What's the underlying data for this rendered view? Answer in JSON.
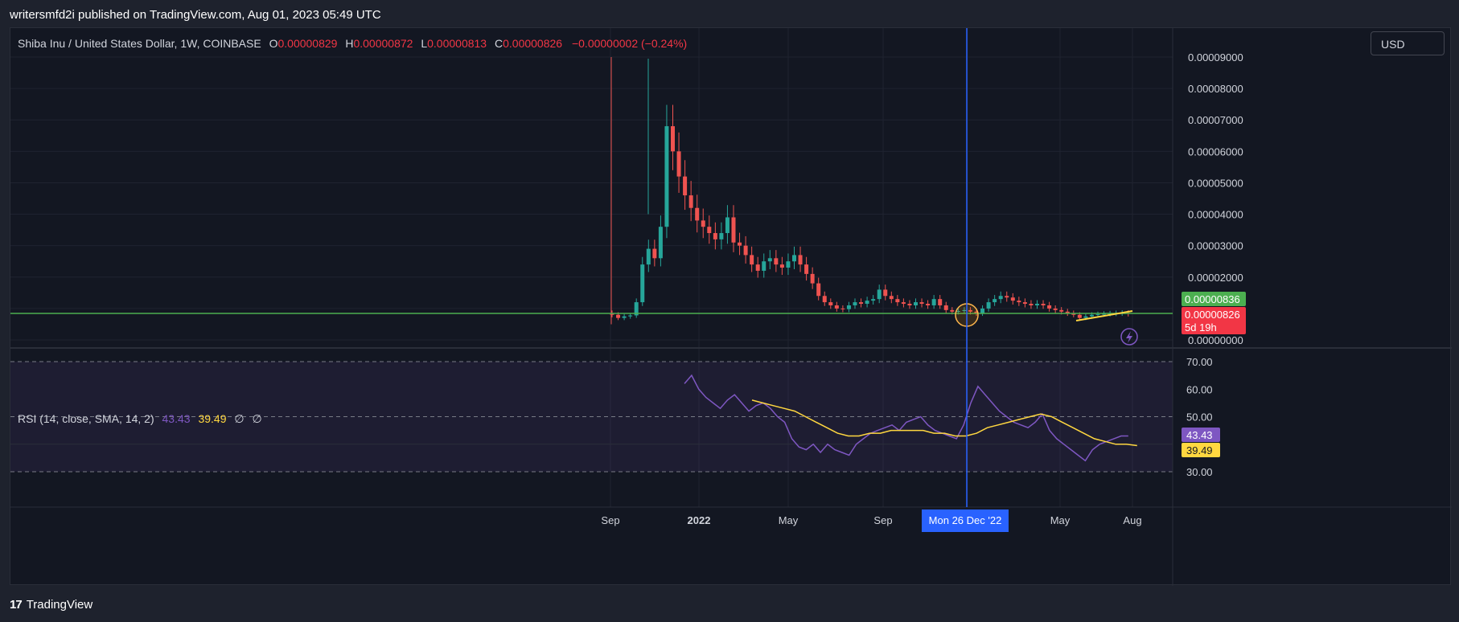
{
  "header": {
    "publisher_line": "writersmfd2i published on TradingView.com, Aug 01, 2023 05:49 UTC"
  },
  "legend": {
    "symbol": "Shiba Inu / United States Dollar, 1W, COINBASE",
    "o_label": "O",
    "o_value": "0.00000829",
    "h_label": "H",
    "h_value": "0.00000872",
    "l_label": "L",
    "l_value": "0.00000813",
    "c_label": "C",
    "c_value": "0.00000826",
    "change": "−0.00000002 (−0.24%)"
  },
  "currency_button": "USD",
  "price_axis": {
    "ticks": [
      "0.00009000",
      "0.00008000",
      "0.00007000",
      "0.00006000",
      "0.00005000",
      "0.00004000",
      "0.00003000",
      "0.00002000",
      "0.00000000"
    ],
    "current_price_label": "0.00000826",
    "countdown_label": "5d 19h",
    "green_label": "0.00000836"
  },
  "rsi": {
    "title": "RSI (14, close, SMA, 14, 2)",
    "rsi_value": "43.43",
    "sma_value": "39.49",
    "null_a": "∅",
    "null_b": "∅",
    "ticks": [
      "70.00",
      "60.00",
      "50.00",
      "30.00"
    ]
  },
  "time_axis": {
    "labels": [
      "Sep",
      "2022",
      "May",
      "Sep",
      "May",
      "Aug"
    ],
    "crosshair_label": "Mon 26 Dec '22"
  },
  "footer": {
    "logo_mark": "17",
    "brand": "TradingView"
  },
  "colors": {
    "up": "#26a69a",
    "down": "#ef5350",
    "rsi": "#7e57c2",
    "sma": "#ffd740",
    "crosshair": "#2962ff",
    "hline": "#4caf50"
  },
  "chart_data": [
    {
      "type": "candlestick",
      "title": "Shiba Inu / United States Dollar, 1W, COINBASE",
      "ylim": [
        0,
        9e-05
      ],
      "close_series": [
        8e-06,
        7e-06,
        7.5e-06,
        7.8e-06,
        1.2e-05,
        2.4e-05,
        2.9e-05,
        2.6e-05,
        3.6e-05,
        6.8e-05,
        6e-05,
        5.2e-05,
        4.6e-05,
        4.2e-05,
        3.8e-05,
        3.6e-05,
        3.4e-05,
        3.2e-05,
        3.4e-05,
        3.9e-05,
        3.1e-05,
        3e-05,
        2.7e-05,
        2.4e-05,
        2.2e-05,
        2.5e-05,
        2.6e-05,
        2.4e-05,
        2.3e-05,
        2.5e-05,
        2.7e-05,
        2.4e-05,
        2.1e-05,
        1.8e-05,
        1.4e-05,
        1.2e-05,
        1.1e-05,
        1e-05,
        9.8e-06,
        1.1e-05,
        1.2e-05,
        1.15e-05,
        1.25e-05,
        1.3e-05,
        1.6e-05,
        1.4e-05,
        1.3e-05,
        1.2e-05,
        1.15e-05,
        1.1e-05,
        1.2e-05,
        1.15e-05,
        1.1e-05,
        1.3e-05,
        1.1e-05,
        9.5e-06,
        9e-06,
        9.2e-06,
        9.5e-06,
        9e-06,
        8.5e-06,
        1e-05,
        1.2e-05,
        1.3e-05,
        1.4e-05,
        1.35e-05,
        1.25e-05,
        1.2e-05,
        1.15e-05,
        1.1e-05,
        1.15e-05,
        1.1e-05,
        1e-05,
        9.5e-06,
        9e-06,
        8.5e-06,
        8e-06,
        7e-06,
        7.5e-06,
        8e-06,
        8.2e-06,
        8.3e-06,
        8.4e-06,
        8.5e-06,
        8.6e-06,
        8.3e-06
      ]
    },
    {
      "type": "line",
      "title": "RSI (14, close, SMA, 14, 2)",
      "ylim": [
        30,
        70
      ],
      "series": [
        {
          "name": "RSI",
          "values": [
            62,
            65,
            60,
            57,
            55,
            53,
            56,
            58,
            55,
            52,
            54,
            55,
            53,
            50,
            48,
            42,
            39,
            38,
            40,
            37,
            40,
            38,
            37,
            36,
            40,
            42,
            44,
            45,
            46,
            47,
            45,
            48,
            49,
            50,
            47,
            45,
            44,
            43,
            42,
            47,
            55,
            61,
            58,
            55,
            52,
            50,
            48,
            47,
            46,
            48,
            51,
            45,
            42,
            40,
            38,
            36,
            34,
            38,
            40,
            41,
            42,
            43,
            43
          ]
        },
        {
          "name": "SMA",
          "values": [
            56,
            55,
            54,
            53,
            52,
            50,
            48,
            46,
            44,
            43,
            43,
            44,
            44,
            45,
            45,
            45,
            45,
            44,
            44,
            43,
            43,
            44,
            46,
            47,
            48,
            49,
            50,
            51,
            50,
            48,
            46,
            44,
            42,
            41,
            40,
            40,
            39.5
          ]
        }
      ]
    }
  ]
}
